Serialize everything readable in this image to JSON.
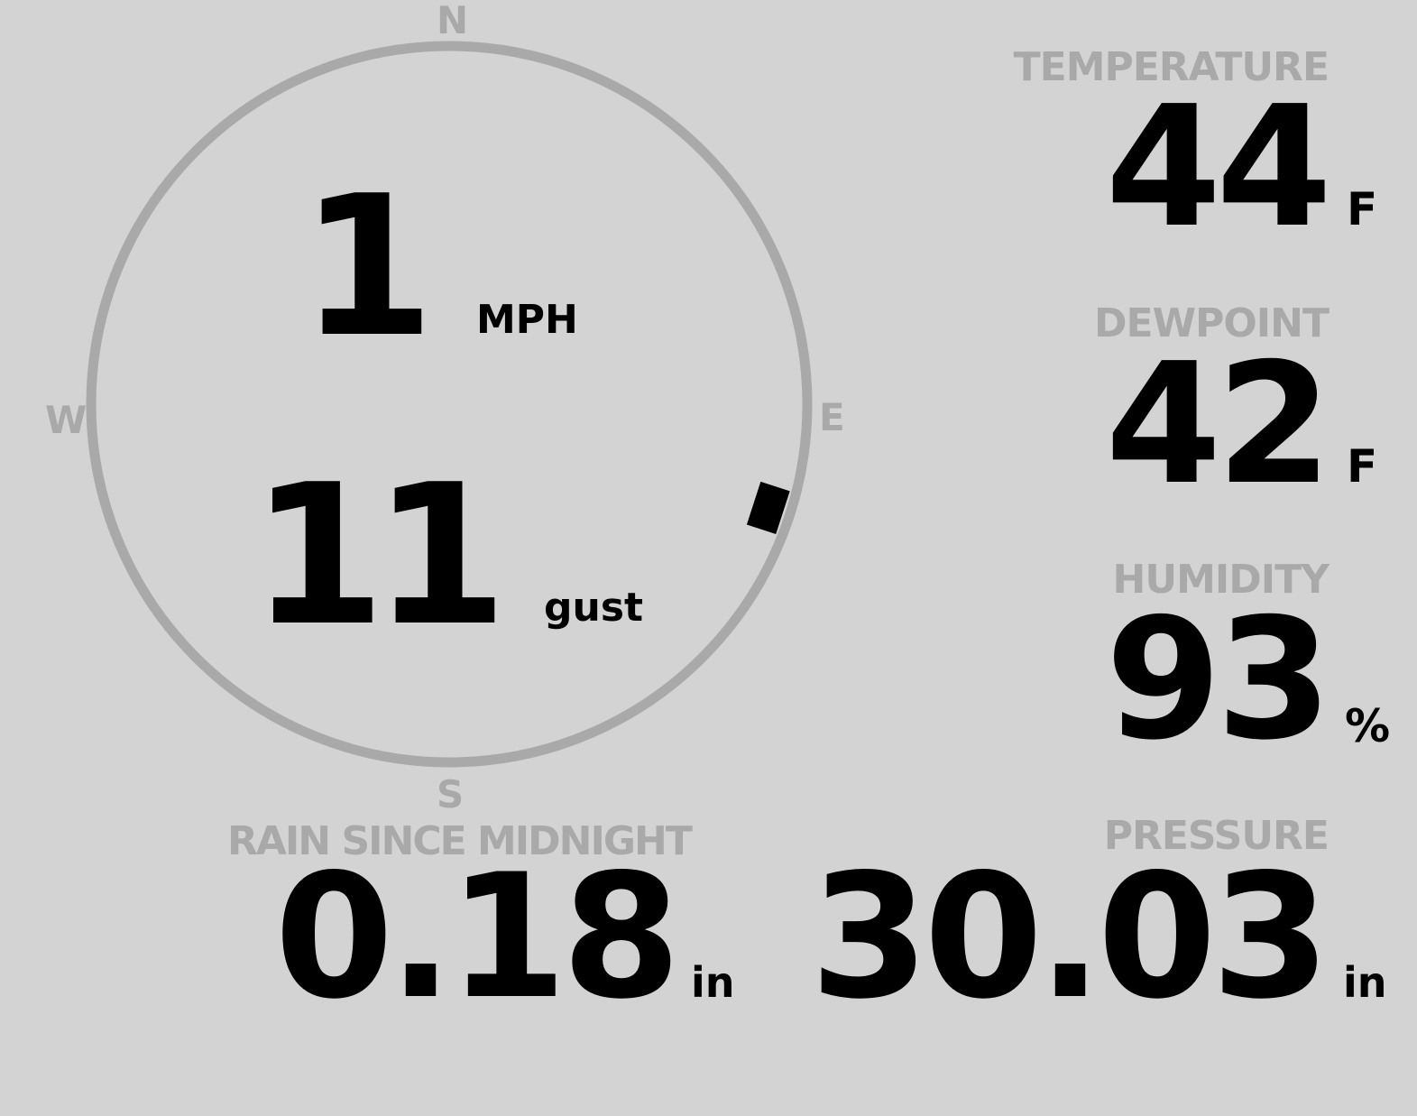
{
  "wind": {
    "compass": {
      "north": "N",
      "south": "S",
      "east": "E",
      "west": "W"
    },
    "speed": "1",
    "speed_unit": "MPH",
    "gust": "11",
    "gust_unit": "gust",
    "direction_deg": 108,
    "ring_color": "#a9a9a9",
    "marker_color": "#000000"
  },
  "temperature": {
    "label": "TEMPERATURE",
    "value": "44",
    "unit": "F"
  },
  "dewpoint": {
    "label": "DEWPOINT",
    "value": "42",
    "unit": "F"
  },
  "humidity": {
    "label": "HUMIDITY",
    "value": "93",
    "unit": "%"
  },
  "rain": {
    "label": "RAIN SINCE MIDNIGHT",
    "value": "0.18",
    "unit": "in"
  },
  "pressure": {
    "label": "PRESSURE",
    "value": "30.03",
    "unit": "in"
  },
  "colors": {
    "background": "#d3d3d3",
    "label": "#a9a9a9",
    "value": "#000000"
  }
}
